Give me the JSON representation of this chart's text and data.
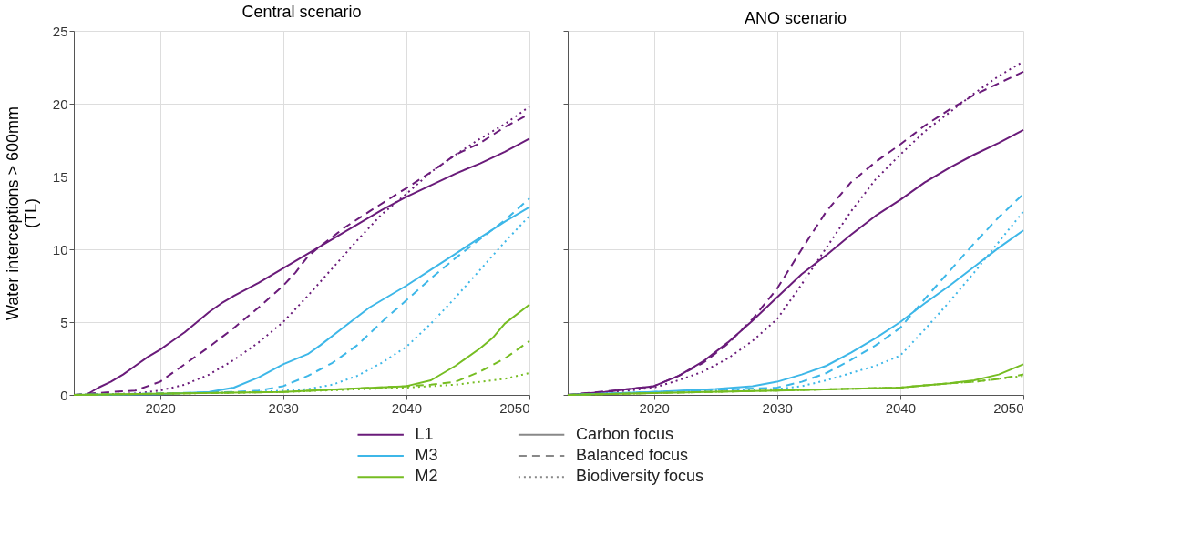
{
  "chart_data": [
    {
      "type": "line",
      "title": "Central scenario",
      "ylabel": "Water interceptions > 600mm (TL)",
      "xlim": [
        2013,
        2050
      ],
      "xticks": [
        2020,
        2030,
        2040,
        2050
      ],
      "ylim": [
        0,
        25
      ],
      "yticks": [
        0,
        5,
        10,
        15,
        20,
        25
      ],
      "grid": true,
      "legend": "bottom",
      "annotations": [
        "Carbon focus",
        "Balanced focus",
        "Biodiversity focus"
      ],
      "series": [
        {
          "name": "L1",
          "color": "#6a1b7a",
          "line_style": "solid",
          "x": [
            2013,
            2014,
            2015,
            2016,
            2017,
            2018,
            2019,
            2020,
            2021,
            2022,
            2023,
            2024,
            2025,
            2026,
            2028,
            2030,
            2032,
            2034,
            2036,
            2038,
            2040,
            2042,
            2044,
            2046,
            2048,
            2050
          ],
          "values": [
            0,
            0,
            0.5,
            0.9,
            1.4,
            2.0,
            2.6,
            3.1,
            3.7,
            4.3,
            5.0,
            5.7,
            6.3,
            6.8,
            7.7,
            8.7,
            9.7,
            10.7,
            11.7,
            12.7,
            13.6,
            14.4,
            15.2,
            15.9,
            16.7,
            17.6
          ]
        },
        {
          "color": "#6a1b7a",
          "line_style": "dashed",
          "x": [
            2013,
            2016,
            2018,
            2019,
            2020,
            2022,
            2024,
            2026,
            2028,
            2030,
            2031,
            2032,
            2033,
            2035,
            2037,
            2040,
            2042,
            2044,
            2046,
            2048,
            2050
          ],
          "values": [
            0,
            0.2,
            0.3,
            0.6,
            0.9,
            2.1,
            3.3,
            4.6,
            6.0,
            7.5,
            8.4,
            9.5,
            10.2,
            11.5,
            12.6,
            14.2,
            15.3,
            16.5,
            17.3,
            18.4,
            19.3
          ]
        },
        {
          "color": "#6a1b7a",
          "line_style": "dotted",
          "x": [
            2013,
            2018,
            2020,
            2022,
            2024,
            2026,
            2028,
            2030,
            2032,
            2034,
            2036,
            2038,
            2040,
            2042,
            2044,
            2046,
            2048,
            2050
          ],
          "values": [
            0,
            0.1,
            0.3,
            0.7,
            1.4,
            2.4,
            3.6,
            5.0,
            6.8,
            8.7,
            10.6,
            12.4,
            13.8,
            15.3,
            16.5,
            17.6,
            18.6,
            19.8
          ]
        },
        {
          "name": "M3",
          "color": "#3db7e8",
          "line_style": "solid",
          "x": [
            2013,
            2020,
            2024,
            2026,
            2028,
            2030,
            2032,
            2033,
            2035,
            2037,
            2040,
            2042,
            2044,
            2046,
            2048,
            2050
          ],
          "values": [
            0,
            0.05,
            0.2,
            0.5,
            1.2,
            2.1,
            2.8,
            3.4,
            4.7,
            6.0,
            7.5,
            8.6,
            9.7,
            10.8,
            11.9,
            12.9
          ]
        },
        {
          "color": "#3db7e8",
          "line_style": "dashed",
          "x": [
            2013,
            2026,
            2028,
            2030,
            2032,
            2034,
            2036,
            2038,
            2040,
            2042,
            2044,
            2046,
            2048,
            2050
          ],
          "values": [
            0,
            0.2,
            0.3,
            0.6,
            1.3,
            2.2,
            3.4,
            5.0,
            6.5,
            8.0,
            9.4,
            10.7,
            12.0,
            13.5
          ]
        },
        {
          "color": "#3db7e8",
          "line_style": "dotted",
          "x": [
            2013,
            2028,
            2030,
            2032,
            2034,
            2036,
            2038,
            2040,
            2042,
            2044,
            2046,
            2048,
            2050
          ],
          "values": [
            0,
            0.2,
            0.3,
            0.4,
            0.7,
            1.3,
            2.2,
            3.3,
            4.9,
            6.7,
            8.6,
            10.5,
            12.3
          ]
        },
        {
          "name": "M2",
          "color": "#76bd22",
          "line_style": "solid",
          "x": [
            2013,
            2030,
            2035,
            2040,
            2042,
            2044,
            2046,
            2047,
            2048,
            2050
          ],
          "values": [
            0,
            0.2,
            0.4,
            0.6,
            1.0,
            2.0,
            3.2,
            3.9,
            4.9,
            6.2
          ]
        },
        {
          "color": "#76bd22",
          "line_style": "dashed",
          "x": [
            2013,
            2030,
            2035,
            2040,
            2042,
            2044,
            2046,
            2048,
            2050
          ],
          "values": [
            0,
            0.2,
            0.4,
            0.6,
            0.7,
            0.9,
            1.6,
            2.5,
            3.7
          ]
        },
        {
          "color": "#76bd22",
          "line_style": "dotted",
          "x": [
            2013,
            2030,
            2040,
            2044,
            2046,
            2048,
            2050
          ],
          "values": [
            0,
            0.2,
            0.5,
            0.7,
            0.9,
            1.1,
            1.5
          ]
        }
      ]
    },
    {
      "type": "line",
      "title": "ANO scenario",
      "xlim": [
        2013,
        2050
      ],
      "xticks": [
        2020,
        2030,
        2040,
        2050
      ],
      "ylim": [
        0,
        25
      ],
      "yticks": [
        0,
        5,
        10,
        15,
        20,
        25
      ],
      "grid": true,
      "tick_labels": "x",
      "series": [
        {
          "name": "L1",
          "color": "#6a1b7a",
          "line_style": "solid",
          "x": [
            2013,
            2016,
            2018,
            2020,
            2022,
            2024,
            2026,
            2028,
            2030,
            2032,
            2034,
            2036,
            2038,
            2040,
            2042,
            2044,
            2046,
            2048,
            2050
          ],
          "values": [
            0,
            0.2,
            0.4,
            0.6,
            1.3,
            2.3,
            3.6,
            5.1,
            6.7,
            8.3,
            9.6,
            11.0,
            12.3,
            13.4,
            14.6,
            15.6,
            16.5,
            17.3,
            18.2
          ]
        },
        {
          "color": "#6a1b7a",
          "line_style": "dashed",
          "x": [
            2013,
            2018,
            2020,
            2022,
            2024,
            2026,
            2028,
            2030,
            2032,
            2034,
            2036,
            2038,
            2040,
            2042,
            2044,
            2046,
            2048,
            2050
          ],
          "values": [
            0,
            0.4,
            0.6,
            1.3,
            2.2,
            3.5,
            5.2,
            7.3,
            10.0,
            12.6,
            14.6,
            16.0,
            17.2,
            18.5,
            19.6,
            20.6,
            21.4,
            22.2
          ]
        },
        {
          "color": "#6a1b7a",
          "line_style": "dotted",
          "x": [
            2013,
            2018,
            2020,
            2022,
            2024,
            2026,
            2028,
            2030,
            2032,
            2034,
            2036,
            2038,
            2040,
            2042,
            2044,
            2046,
            2048,
            2050
          ],
          "values": [
            0,
            0.3,
            0.5,
            1.0,
            1.6,
            2.5,
            3.7,
            5.2,
            7.6,
            10.1,
            12.6,
            14.8,
            16.5,
            18.1,
            19.4,
            20.7,
            21.9,
            22.9
          ]
        },
        {
          "name": "M3",
          "color": "#3db7e8",
          "line_style": "solid",
          "x": [
            2013,
            2020,
            2025,
            2028,
            2030,
            2032,
            2034,
            2036,
            2038,
            2040,
            2042,
            2044,
            2046,
            2048,
            2050
          ],
          "values": [
            0,
            0.2,
            0.4,
            0.6,
            0.9,
            1.4,
            2.0,
            2.9,
            3.9,
            5.0,
            6.3,
            7.5,
            8.8,
            10.1,
            11.3
          ]
        },
        {
          "color": "#3db7e8",
          "line_style": "dashed",
          "x": [
            2013,
            2020,
            2030,
            2032,
            2034,
            2036,
            2038,
            2040,
            2042,
            2044,
            2046,
            2048,
            2050
          ],
          "values": [
            0,
            0.2,
            0.5,
            0.9,
            1.5,
            2.4,
            3.4,
            4.6,
            6.6,
            8.5,
            10.4,
            12.2,
            13.8
          ]
        },
        {
          "color": "#3db7e8",
          "line_style": "dotted",
          "x": [
            2013,
            2020,
            2030,
            2032,
            2034,
            2036,
            2038,
            2040,
            2042,
            2044,
            2046,
            2048,
            2050
          ],
          "values": [
            0,
            0.2,
            0.4,
            0.6,
            1.0,
            1.5,
            2.0,
            2.7,
            4.5,
            6.4,
            8.4,
            10.5,
            12.6
          ]
        },
        {
          "name": "M2",
          "color": "#76bd22",
          "line_style": "solid",
          "x": [
            2013,
            2030,
            2040,
            2044,
            2046,
            2048,
            2050
          ],
          "values": [
            0,
            0.3,
            0.5,
            0.8,
            1.0,
            1.4,
            2.1
          ]
        },
        {
          "color": "#76bd22",
          "line_style": "dashed",
          "x": [
            2013,
            2030,
            2040,
            2044,
            2046,
            2048,
            2050
          ],
          "values": [
            0,
            0.3,
            0.5,
            0.8,
            0.9,
            1.1,
            1.4
          ]
        },
        {
          "color": "#76bd22",
          "line_style": "dotted",
          "x": [
            2013,
            2030,
            2040,
            2044,
            2046,
            2048,
            2050
          ],
          "values": [
            0,
            0.3,
            0.5,
            0.8,
            0.9,
            1.1,
            1.3
          ]
        }
      ]
    }
  ]
}
